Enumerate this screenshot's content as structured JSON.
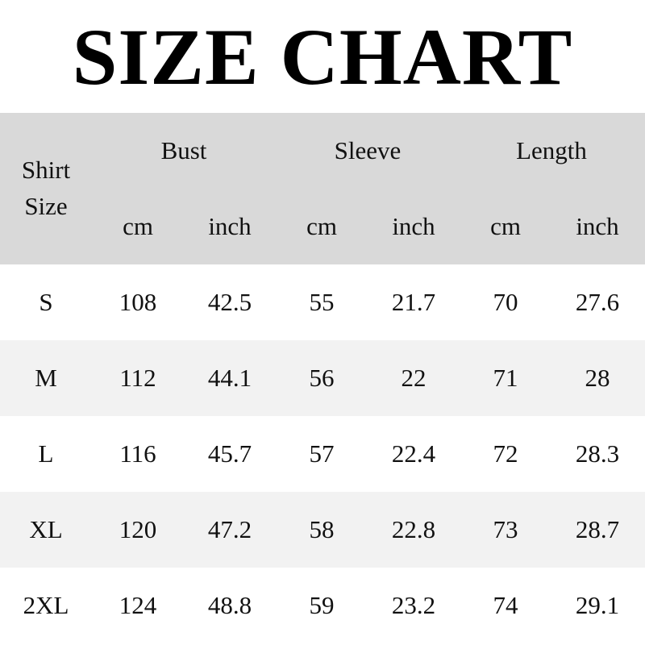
{
  "title": "SIZE CHART",
  "header": {
    "size_label": "Shirt Size",
    "groups": [
      "Bust",
      "Sleeve",
      "Length"
    ],
    "units": [
      "cm",
      "inch",
      "cm",
      "inch",
      "cm",
      "inch"
    ]
  },
  "rows": [
    [
      "S",
      "108",
      "42.5",
      "55",
      "21.7",
      "70",
      "27.6"
    ],
    [
      "M",
      "112",
      "44.1",
      "56",
      "22",
      "71",
      "28"
    ],
    [
      "L",
      "116",
      "45.7",
      "57",
      "22.4",
      "72",
      "28.3"
    ],
    [
      "XL",
      "120",
      "47.2",
      "58",
      "22.8",
      "73",
      "28.7"
    ],
    [
      "2XL",
      "124",
      "48.8",
      "59",
      "23.2",
      "74",
      "29.1"
    ]
  ],
  "colors": {
    "header_bg": "#d9d9d9",
    "alt_row_bg": "#f2f2f2"
  }
}
